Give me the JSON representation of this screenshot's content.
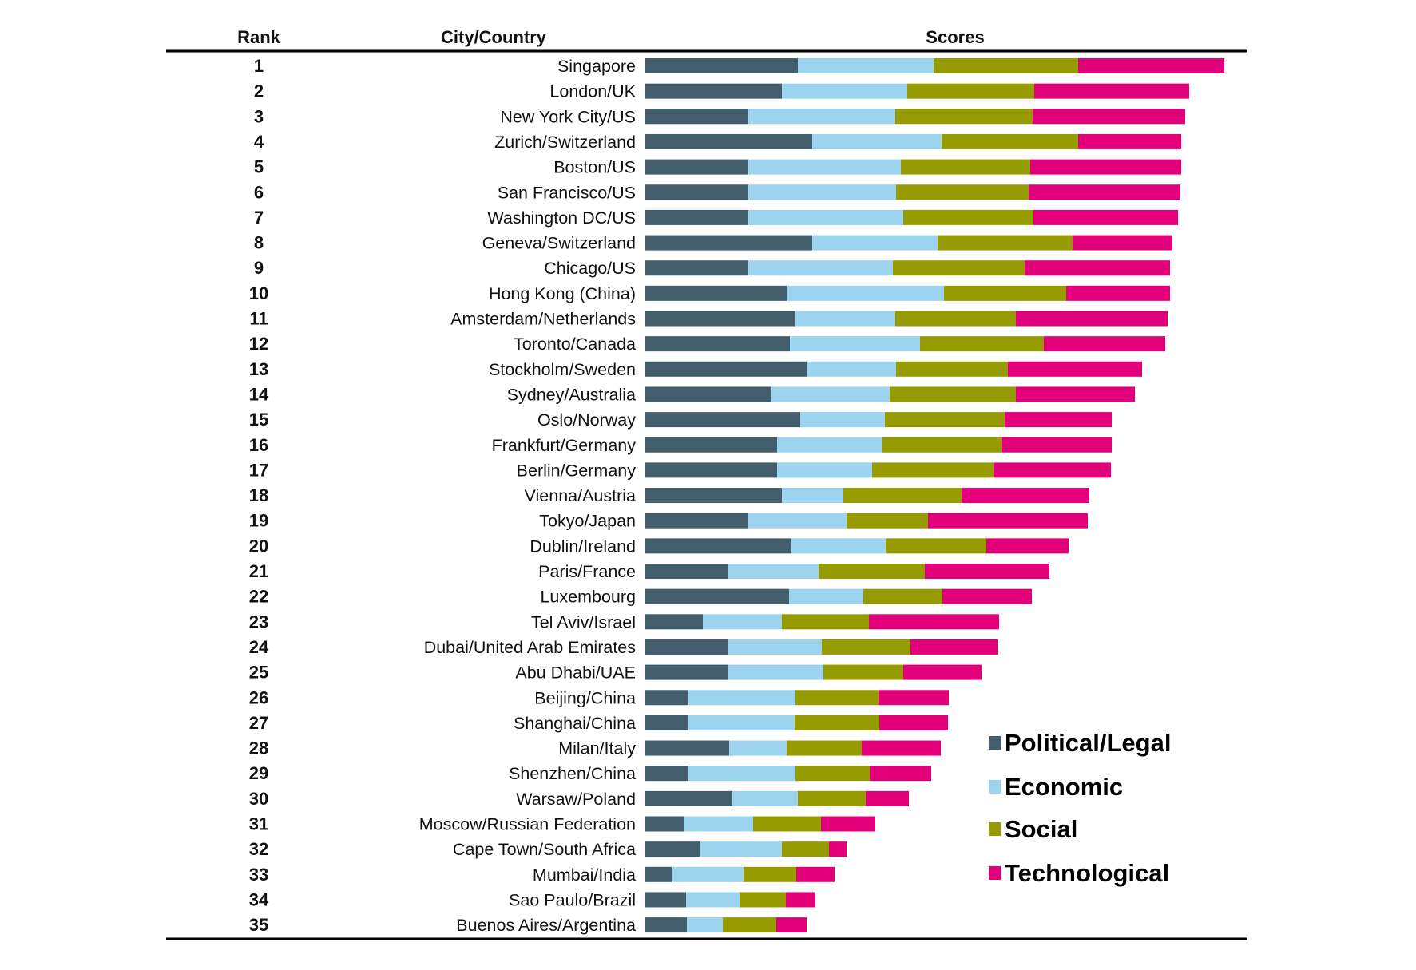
{
  "chart_data": {
    "type": "bar",
    "orientation": "horizontal",
    "stacked": true,
    "headers": {
      "rank": "Rank",
      "city": "City/Country",
      "scores": "Scores"
    },
    "value_note": "relative segment lengths (no axis shown)",
    "ranks": [
      "1",
      "2",
      "3",
      "4",
      "5",
      "6",
      "7",
      "8",
      "9",
      "10",
      "11",
      "12",
      "13",
      "14",
      "15",
      "16",
      "17",
      "18",
      "19",
      "20",
      "21",
      "22",
      "23",
      "24",
      "25",
      "26",
      "27",
      "28",
      "29",
      "30",
      "31",
      "32",
      "33",
      "34",
      "35"
    ],
    "categories": [
      "Singapore",
      "London/UK",
      "New York City/US",
      "Zurich/Switzerland",
      "Boston/US",
      "San Francisco/US",
      "Washington DC/US",
      "Geneva/Switzerland",
      "Chicago/US",
      "Hong Kong (China)",
      "Amsterdam/Netherlands",
      "Toronto/Canada",
      "Stockholm/Sweden",
      "Sydney/Australia",
      "Oslo/Norway",
      "Frankfurt/Germany",
      "Berlin/Germany",
      "Vienna/Austria",
      "Tokyo/Japan",
      "Dublin/Ireland",
      "Paris/France",
      "Luxembourg",
      "Tel Aviv/Israel",
      "Dubai/United Arab Emirates",
      "Abu Dhabi/UAE",
      "Beijing/China",
      "Shanghai/China",
      "Milan/Italy",
      "Shenzhen/China",
      "Warsaw/Poland",
      "Moscow/Russian Federation",
      "Cape Town/South Africa",
      "Mumbai/India",
      "Sao Paulo/Brazil",
      "Buenos Aires/Argentina"
    ],
    "series": [
      {
        "name": "Political/Legal",
        "color": "#425e6c",
        "values": [
          19.1,
          17.1,
          12.9,
          20.9,
          12.9,
          12.9,
          12.9,
          20.9,
          12.9,
          17.7,
          18.8,
          18.1,
          20.2,
          15.8,
          19.4,
          16.5,
          16.5,
          17.1,
          12.8,
          18.3,
          10.4,
          18.0,
          7.2,
          10.4,
          10.4,
          5.4,
          5.4,
          10.5,
          5.4,
          10.9,
          4.8,
          6.8,
          3.3,
          5.1,
          5.2
        ]
      },
      {
        "name": "Economic",
        "color": "#9cd3ef",
        "values": [
          17.0,
          15.7,
          18.4,
          16.2,
          19.1,
          18.5,
          19.4,
          15.7,
          18.1,
          19.7,
          12.5,
          16.3,
          11.2,
          14.8,
          10.6,
          13.1,
          11.9,
          7.7,
          12.4,
          11.8,
          11.3,
          9.3,
          9.9,
          11.7,
          11.9,
          13.4,
          13.3,
          7.2,
          13.4,
          8.2,
          8.7,
          10.3,
          9.0,
          6.7,
          4.5
        ]
      },
      {
        "name": "Social",
        "color": "#969b00",
        "values": [
          18.1,
          15.9,
          17.2,
          17.1,
          16.2,
          16.6,
          16.3,
          16.9,
          16.5,
          15.3,
          15.1,
          15.5,
          14.0,
          15.8,
          15.0,
          15.0,
          15.2,
          14.8,
          10.2,
          12.6,
          13.3,
          9.9,
          10.9,
          11.1,
          10.0,
          10.4,
          10.6,
          9.4,
          9.3,
          8.5,
          8.5,
          5.9,
          6.6,
          5.8,
          6.7
        ]
      },
      {
        "name": "Technological",
        "color": "#e2007a",
        "values": [
          18.3,
          19.4,
          19.1,
          12.9,
          18.9,
          19.0,
          18.1,
          12.5,
          18.2,
          13.0,
          19.0,
          15.2,
          16.8,
          14.9,
          13.4,
          13.8,
          14.7,
          16.0,
          20.0,
          10.3,
          15.6,
          11.2,
          16.3,
          10.9,
          9.8,
          8.8,
          8.6,
          9.9,
          7.7,
          5.4,
          6.8,
          2.2,
          4.8,
          3.7,
          3.8
        ]
      }
    ],
    "legend_position": "bottom-right",
    "grid": false
  }
}
